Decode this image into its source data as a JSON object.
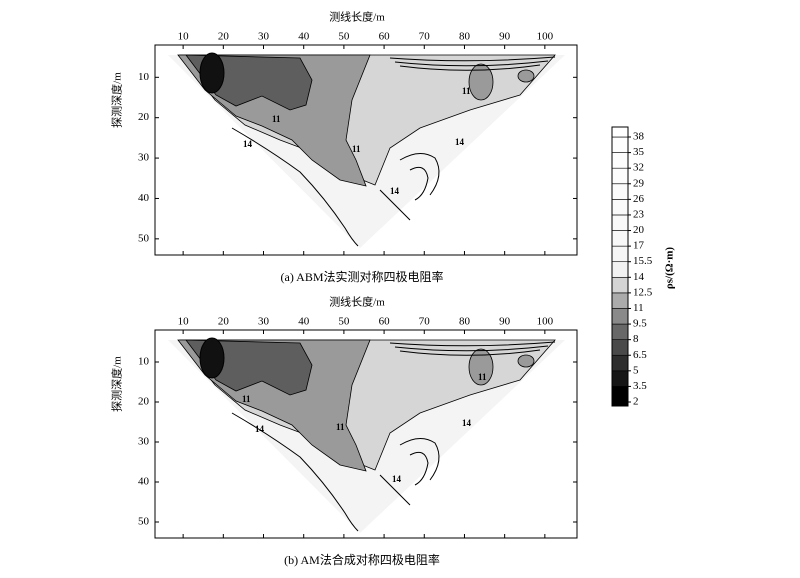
{
  "chart_data": [
    {
      "type": "contour",
      "xlabel": "测线长度/m",
      "ylabel": "探测深度/m",
      "caption": "(a) ABM法实测对称四极电阻率",
      "xlim": [
        3,
        108
      ],
      "xticks": [
        10,
        20,
        30,
        40,
        50,
        60,
        70,
        80,
        90,
        100
      ],
      "ylim": [
        2,
        54
      ],
      "yticks": [
        10,
        20,
        30,
        40,
        50
      ],
      "annotations": [
        "11",
        "11",
        "11",
        "14",
        "14",
        "14"
      ]
    },
    {
      "type": "contour",
      "xlabel": "测线长度/m",
      "ylabel": "探测深度/m",
      "caption": "(b) AM法合成对称四极电阻率",
      "xlim": [
        3,
        108
      ],
      "xticks": [
        10,
        20,
        30,
        40,
        50,
        60,
        70,
        80,
        90,
        100
      ],
      "ylim": [
        2,
        54
      ],
      "yticks": [
        10,
        20,
        30,
        40,
        50
      ],
      "annotations": [
        "11",
        "11",
        "11",
        "14",
        "14",
        "14"
      ]
    }
  ],
  "colorbar": {
    "label": "ρs/(Ω·m)",
    "levels": [
      2,
      3.5,
      5,
      6.5,
      8,
      9.5,
      11,
      12.5,
      14,
      15.5,
      17,
      20,
      23,
      26,
      29,
      32,
      35,
      38
    ],
    "colors": [
      "#000000",
      "#161616",
      "#2e2e2e",
      "#4a4a4a",
      "#686868",
      "#8a8a8a",
      "#ababab",
      "#d4d4d4",
      "#f2f2f2",
      "#f6f6f6",
      "#f8f8f8",
      "#f9f9f9",
      "#fafafa",
      "#fbfbfb",
      "#fcfcfc",
      "#fdfdfd",
      "#fefefe",
      "#ffffff"
    ]
  }
}
